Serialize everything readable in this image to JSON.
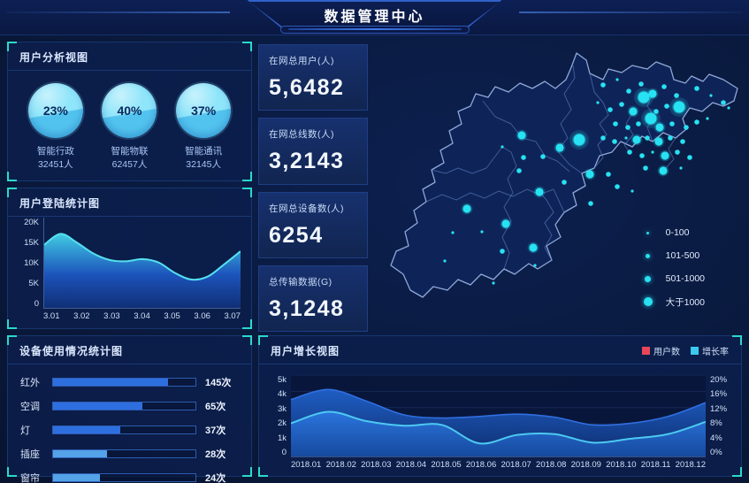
{
  "header": {
    "title": "数据管理中心"
  },
  "accent": {
    "cyan": "#29e0f0",
    "bracket_teal": "#2bd9c9",
    "bar_blue": "#2e6fe0",
    "bar_light": "#54a2e8",
    "red": "#e8475a"
  },
  "panels": {
    "user_analysis": {
      "title": "用户分析视图",
      "gauges": [
        {
          "percent": "23%",
          "label": "智能行政",
          "count": "32451人"
        },
        {
          "percent": "40%",
          "label": "智能物联",
          "count": "62457人"
        },
        {
          "percent": "37%",
          "label": "智能通讯",
          "count": "32145人"
        }
      ]
    },
    "login_stats": {
      "title": "用户登陆统计图"
    },
    "device_usage": {
      "title": "设备使用情况统计图"
    },
    "user_growth": {
      "title": "用户增长视图",
      "legend": [
        {
          "label": "用户数",
          "color": "#e8475a"
        },
        {
          "label": "增长率",
          "color": "#3bc9ef"
        }
      ]
    }
  },
  "stat_cards": [
    {
      "label": "在网总用户(人)",
      "value": "5,6482"
    },
    {
      "label": "在网总线数(人)",
      "value": "3,2143"
    },
    {
      "label": "在网总设备数(人)",
      "value": "6254"
    },
    {
      "label": "总传输数据(G)",
      "value": "3,1248"
    }
  ],
  "map": {
    "legend": [
      {
        "label": "0-100",
        "size": 3
      },
      {
        "label": "101-500",
        "size": 5
      },
      {
        "label": "501-1000",
        "size": 7
      },
      {
        "label": "大于1000",
        "size": 10
      }
    ],
    "dots": [
      [
        262,
        48,
        2
      ],
      [
        278,
        42,
        1
      ],
      [
        291,
        55,
        2
      ],
      [
        305,
        47,
        2
      ],
      [
        318,
        58,
        3
      ],
      [
        331,
        50,
        2
      ],
      [
        345,
        60,
        2
      ],
      [
        368,
        52,
        2
      ],
      [
        384,
        60,
        1
      ],
      [
        398,
        68,
        2
      ],
      [
        404,
        74,
        1
      ],
      [
        256,
        68,
        1
      ],
      [
        270,
        76,
        2
      ],
      [
        283,
        70,
        2
      ],
      [
        296,
        78,
        3
      ],
      [
        308,
        62,
        4
      ],
      [
        322,
        78,
        2
      ],
      [
        334,
        72,
        2
      ],
      [
        348,
        73,
        4
      ],
      [
        276,
        92,
        2
      ],
      [
        290,
        96,
        2
      ],
      [
        302,
        92,
        2
      ],
      [
        316,
        86,
        4
      ],
      [
        326,
        96,
        3
      ],
      [
        340,
        92,
        2
      ],
      [
        356,
        96,
        2
      ],
      [
        368,
        90,
        2
      ],
      [
        380,
        86,
        1
      ],
      [
        262,
        108,
        2
      ],
      [
        275,
        112,
        2
      ],
      [
        288,
        108,
        1
      ],
      [
        300,
        110,
        3
      ],
      [
        312,
        108,
        2
      ],
      [
        325,
        112,
        3
      ],
      [
        338,
        108,
        2
      ],
      [
        352,
        112,
        2
      ],
      [
        292,
        124,
        2
      ],
      [
        306,
        128,
        2
      ],
      [
        318,
        124,
        1
      ],
      [
        332,
        128,
        3
      ],
      [
        346,
        124,
        2
      ],
      [
        360,
        130,
        2
      ],
      [
        310,
        142,
        2
      ],
      [
        330,
        145,
        3
      ],
      [
        350,
        142,
        1
      ],
      [
        235,
        110,
        4
      ],
      [
        170,
        105,
        3
      ],
      [
        148,
        118,
        1
      ],
      [
        213,
        119,
        3
      ],
      [
        194,
        129,
        2
      ],
      [
        172,
        130,
        2
      ],
      [
        167,
        145,
        2
      ],
      [
        247,
        149,
        3
      ],
      [
        268,
        149,
        2
      ],
      [
        190,
        169,
        3
      ],
      [
        248,
        182,
        2
      ],
      [
        278,
        163,
        2
      ],
      [
        218,
        158,
        2
      ],
      [
        295,
        168,
        1
      ],
      [
        152,
        205,
        3
      ],
      [
        108,
        188,
        3
      ],
      [
        125,
        214,
        1
      ],
      [
        148,
        236,
        2
      ],
      [
        92,
        215,
        1
      ],
      [
        83,
        247,
        1
      ],
      [
        183,
        232,
        3
      ],
      [
        185,
        252,
        1
      ],
      [
        138,
        272,
        1
      ]
    ]
  },
  "chart_data": [
    {
      "id": "login",
      "type": "area",
      "title": "用户登陆统计图",
      "x": [
        "3.01",
        "3.02",
        "3.03",
        "3.04",
        "3.05",
        "3.06",
        "3.07"
      ],
      "x_fine_step": 0.005,
      "values": [
        14.5,
        17,
        15,
        12.5,
        11,
        10.7,
        11.2,
        10.4,
        8,
        6.5,
        7.2,
        10,
        13
      ],
      "unit": "K",
      "ylabel_ticks": [
        "20K",
        "15K",
        "10K",
        "5K",
        "0"
      ],
      "ylim": [
        0,
        20
      ],
      "grid": false,
      "legend_position": "none"
    },
    {
      "id": "device",
      "type": "bar",
      "title": "设备使用情况统计图",
      "orientation": "horizontal",
      "categories": [
        "红外",
        "空调",
        "灯",
        "插座",
        "窗帘"
      ],
      "values": [
        145,
        65,
        37,
        28,
        24
      ],
      "unit": "次",
      "bar_pct": [
        81,
        63,
        47,
        38,
        33
      ],
      "bar_colors": [
        "#2e6fe0",
        "#2e6fe0",
        "#2e6fe0",
        "#54a2e8",
        "#54a2e8"
      ]
    },
    {
      "id": "growth",
      "type": "area",
      "title": "用户增长视图",
      "categories": [
        "2018.01",
        "2018.02",
        "2018.03",
        "2018.04",
        "2018.05",
        "2018.06",
        "2018.07",
        "2018.08",
        "2018.09",
        "2018.10",
        "2018.11",
        "2018.12"
      ],
      "series": [
        {
          "name": "用户数",
          "axis": "left",
          "unit": "k",
          "values": [
            3.7,
            4.35,
            3.6,
            2.7,
            2.5,
            2.6,
            2.75,
            2.55,
            2.05,
            2.15,
            2.6,
            3.5
          ]
        },
        {
          "name": "增长率",
          "axis": "right",
          "unit": "%",
          "values": [
            8.6,
            11.6,
            9.2,
            8.0,
            8.2,
            3.4,
            5.6,
            5.8,
            3.6,
            4.6,
            5.8,
            9.0
          ]
        }
      ],
      "left_ticks": [
        "5k",
        "4k",
        "3k",
        "2k",
        "1k",
        "0"
      ],
      "left_lim": [
        0,
        5
      ],
      "right_ticks": [
        "20%",
        "16%",
        "12%",
        "8%",
        "4%",
        "0%"
      ],
      "right_lim": [
        0,
        20
      ],
      "grid": true,
      "legend_position": "top-right"
    },
    {
      "id": "gauges",
      "type": "gauge",
      "labels": [
        "智能行政",
        "智能物联",
        "智能通讯"
      ],
      "values": [
        23,
        40,
        37
      ],
      "counts": [
        32451,
        62457,
        32145
      ]
    }
  ]
}
